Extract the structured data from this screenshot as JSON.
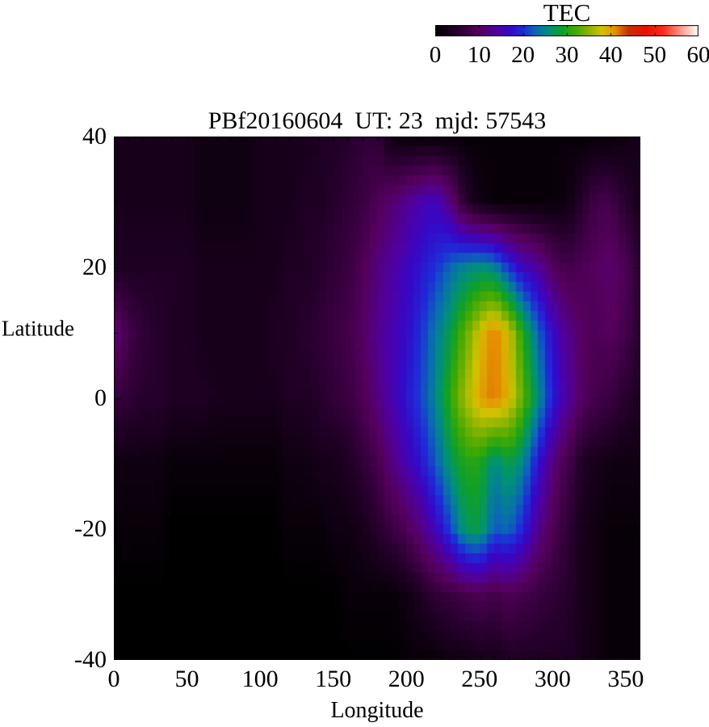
{
  "title": "PBf20160604  UT: 23  mjd: 57543",
  "colorbar": {
    "label": "TEC",
    "min": 0,
    "max": 60,
    "tick_values": [
      0,
      10,
      20,
      30,
      40,
      50,
      60
    ],
    "tick_labels": [
      "0",
      "10",
      "20",
      "30",
      "40",
      "50",
      "60"
    ]
  },
  "axes": {
    "x": {
      "label": "Longitude",
      "min": 0,
      "max": 360,
      "tick_values": [
        0,
        50,
        100,
        150,
        200,
        250,
        300,
        350
      ],
      "minor_step": 10
    },
    "y": {
      "label": "Latitude",
      "min": -40,
      "max": 40,
      "tick_values": [
        40,
        20,
        0,
        -20,
        -40
      ],
      "minor_step": 10
    }
  },
  "chart_data": {
    "type": "heatmap",
    "title": "PBf20160604  UT: 23  mjd: 57543",
    "xlabel": "Longitude",
    "ylabel": "Latitude",
    "value_label": "TEC",
    "value_range": [
      0,
      60
    ],
    "xlim": [
      0,
      360
    ],
    "ylim": [
      -40,
      40
    ],
    "grid": false,
    "legend_position": "top-right-colorbar",
    "lon": [
      0,
      10,
      20,
      30,
      40,
      50,
      60,
      70,
      80,
      90,
      100,
      110,
      120,
      130,
      140,
      150,
      160,
      170,
      180,
      190,
      200,
      210,
      220,
      230,
      240,
      250,
      260,
      270,
      280,
      290,
      300,
      310,
      320,
      330,
      340,
      350,
      360
    ],
    "lat": [
      40,
      30,
      20,
      10,
      0,
      -10,
      -20,
      -30,
      -40
    ],
    "values_tec": [
      [
        3,
        3,
        3,
        3,
        3,
        3,
        2,
        2,
        2,
        2,
        3,
        3,
        3,
        3,
        4,
        4,
        5,
        6,
        6,
        2,
        1,
        1,
        1,
        1,
        1,
        1,
        1,
        1,
        1,
        1,
        1,
        1,
        1,
        1,
        1,
        2,
        3
      ],
      [
        3,
        3,
        3,
        3,
        3,
        3,
        2,
        2,
        2,
        2,
        3,
        3,
        3,
        4,
        4,
        5,
        6,
        7,
        9,
        11,
        13,
        15,
        16,
        12,
        5,
        2,
        1,
        1,
        1,
        1,
        1,
        2,
        5,
        8,
        8,
        5,
        3
      ],
      [
        4,
        4,
        4,
        4,
        4,
        4,
        3,
        3,
        3,
        3,
        3,
        3,
        4,
        4,
        5,
        6,
        7,
        9,
        12,
        14,
        16,
        18,
        20,
        23,
        25,
        26,
        25,
        20,
        16,
        14,
        10,
        8,
        9,
        10,
        11,
        9,
        5
      ],
      [
        12,
        8,
        6,
        5,
        4,
        4,
        3,
        3,
        3,
        3,
        3,
        4,
        4,
        5,
        6,
        7,
        8,
        10,
        13,
        15,
        17,
        20,
        24,
        28,
        33,
        38,
        42,
        38,
        30,
        23,
        17,
        13,
        10,
        9,
        10,
        8,
        5
      ],
      [
        7,
        6,
        5,
        5,
        4,
        4,
        4,
        3,
        3,
        3,
        3,
        3,
        4,
        4,
        5,
        6,
        7,
        9,
        12,
        15,
        18,
        21,
        25,
        31,
        36,
        40,
        42,
        39,
        33,
        26,
        19,
        14,
        10,
        8,
        7,
        5,
        4
      ],
      [
        2,
        2,
        2,
        2,
        1,
        1,
        1,
        1,
        1,
        1,
        1,
        1,
        2,
        2,
        3,
        3,
        4,
        6,
        8,
        12,
        15,
        18,
        22,
        27,
        30,
        30,
        25,
        28,
        25,
        18,
        12,
        8,
        4,
        3,
        2,
        2,
        2
      ],
      [
        1,
        1,
        1,
        1,
        0,
        0,
        0,
        0,
        0,
        0,
        0,
        0,
        1,
        1,
        1,
        2,
        2,
        3,
        5,
        7,
        9,
        12,
        16,
        21,
        27,
        28,
        22,
        23,
        19,
        13,
        9,
        6,
        3,
        2,
        1,
        1,
        1
      ],
      [
        0,
        0,
        0,
        0,
        0,
        0,
        0,
        0,
        0,
        0,
        0,
        0,
        0,
        0,
        0,
        0,
        1,
        1,
        1,
        1,
        2,
        4,
        6,
        7,
        8,
        9,
        8,
        9,
        8,
        7,
        6,
        5,
        3,
        2,
        1,
        1,
        1
      ],
      [
        0,
        0,
        0,
        0,
        0,
        0,
        0,
        0,
        0,
        0,
        0,
        0,
        0,
        0,
        0,
        0,
        0,
        0,
        0,
        0,
        1,
        1,
        1,
        2,
        2,
        3,
        3,
        4,
        4,
        4,
        4,
        4,
        3,
        2,
        1,
        1,
        1
      ]
    ],
    "colormap_stops": [
      [
        0,
        "#000000"
      ],
      [
        5,
        "#26002c"
      ],
      [
        10,
        "#56005e"
      ],
      [
        14,
        "#5000a0"
      ],
      [
        17,
        "#3508c8"
      ],
      [
        20,
        "#1e2cd8"
      ],
      [
        23,
        "#0a6ab4"
      ],
      [
        26,
        "#009178"
      ],
      [
        29,
        "#0fa028"
      ],
      [
        32,
        "#46aa00"
      ],
      [
        35,
        "#8cb400"
      ],
      [
        38,
        "#d2c300"
      ],
      [
        41,
        "#e69100"
      ],
      [
        44,
        "#c83200"
      ],
      [
        48,
        "#e81000"
      ],
      [
        52,
        "#ff2a1e"
      ],
      [
        56,
        "#ff9687"
      ],
      [
        60,
        "#ffffff"
      ]
    ],
    "render_grid": {
      "lon_cells": 72,
      "lat_cells": 54
    }
  }
}
